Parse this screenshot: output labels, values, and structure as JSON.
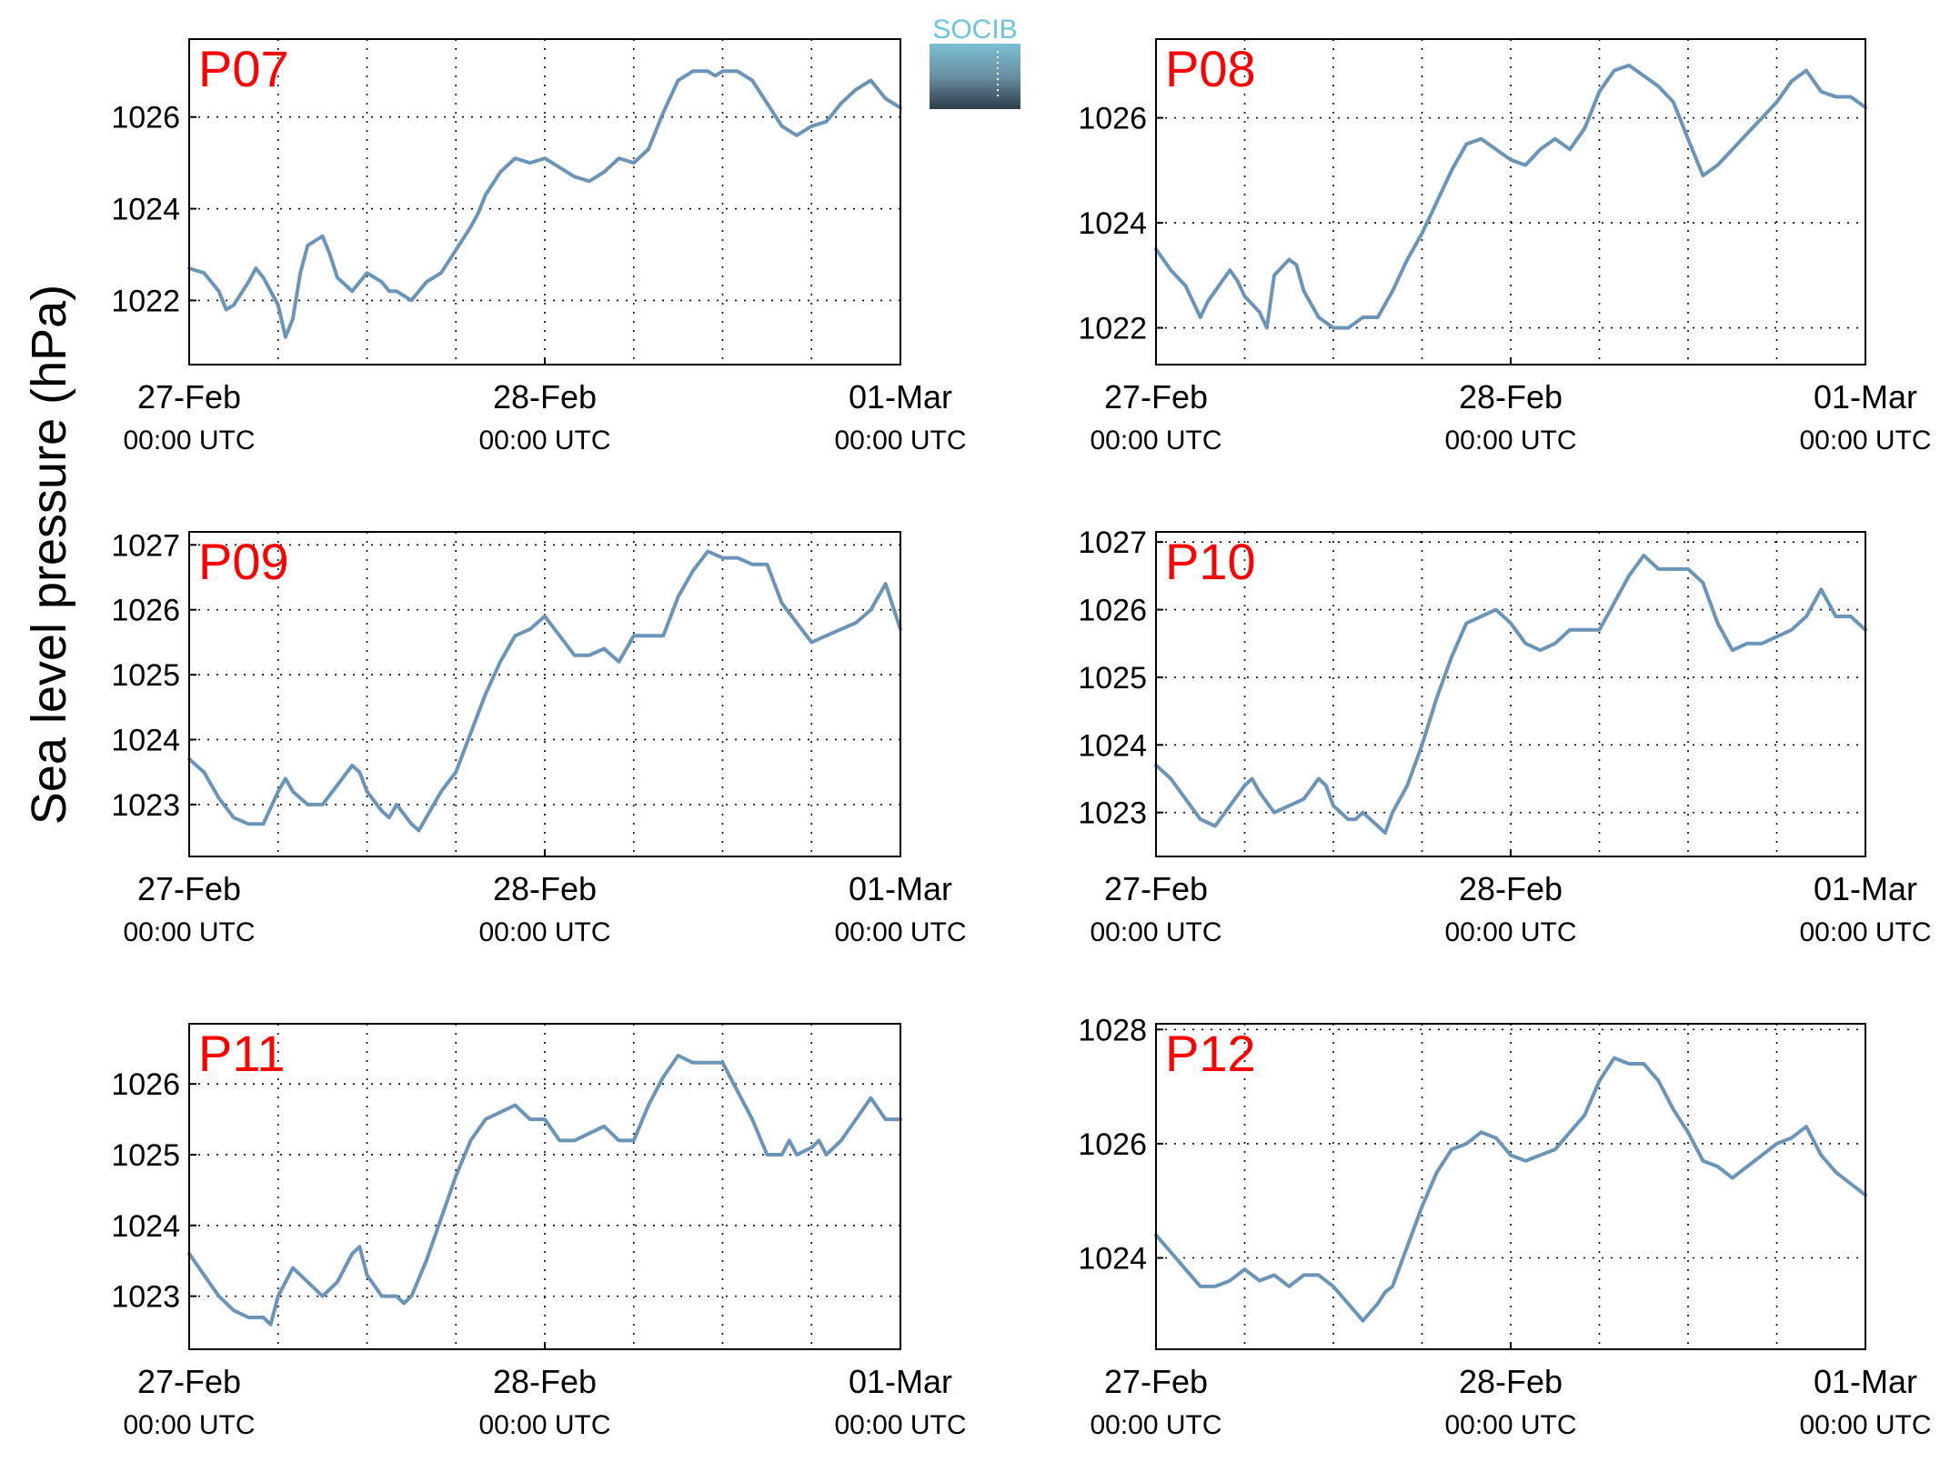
{
  "figure": {
    "ylabel": "Sea level pressure (hPa)",
    "logo_text": "SOCIB",
    "line_color": "#6a94b8",
    "station_label_color": "#ff0000"
  },
  "chart_data": [
    {
      "type": "line",
      "station": "P07",
      "x_tick_labels": [
        [
          "27-Feb",
          "00:00 UTC"
        ],
        [
          "28-Feb",
          "00:00 UTC"
        ],
        [
          "01-Mar",
          "00:00 UTC"
        ]
      ],
      "x_range_hours": [
        0,
        48
      ],
      "ylim": [
        1020.6,
        1027.7
      ],
      "yticks": [
        1022,
        1024,
        1026
      ],
      "grid": true,
      "x_hours": [
        0,
        1,
        2,
        2.5,
        3,
        4,
        4.5,
        5,
        6,
        6.5,
        7,
        7.5,
        8,
        9,
        9.5,
        10,
        11,
        12,
        13,
        13.5,
        14,
        15,
        16,
        17,
        18,
        19,
        19.5,
        20,
        21,
        22,
        23,
        24,
        25,
        26,
        27,
        28,
        29,
        30,
        31,
        32,
        33,
        34,
        35,
        35.5,
        36,
        37,
        38,
        39,
        40,
        41,
        42,
        43,
        44,
        45,
        46,
        47,
        48
      ],
      "y": [
        1022.7,
        1022.6,
        1022.2,
        1021.8,
        1021.9,
        1022.4,
        1022.7,
        1022.5,
        1021.9,
        1021.2,
        1021.6,
        1022.6,
        1023.2,
        1023.4,
        1023.0,
        1022.5,
        1022.2,
        1022.6,
        1022.4,
        1022.2,
        1022.2,
        1022.0,
        1022.4,
        1022.6,
        1023.1,
        1023.6,
        1023.9,
        1024.3,
        1024.8,
        1025.1,
        1025.0,
        1025.1,
        1024.9,
        1024.7,
        1024.6,
        1024.8,
        1025.1,
        1025.0,
        1025.3,
        1026.1,
        1026.8,
        1027.0,
        1027.0,
        1026.9,
        1027.0,
        1027.0,
        1026.8,
        1026.3,
        1025.8,
        1025.6,
        1025.8,
        1025.9,
        1026.3,
        1026.6,
        1026.8,
        1026.4,
        1026.2
      ]
    },
    {
      "type": "line",
      "station": "P08",
      "x_tick_labels": [
        [
          "27-Feb",
          "00:00 UTC"
        ],
        [
          "28-Feb",
          "00:00 UTC"
        ],
        [
          "01-Mar",
          "00:00 UTC"
        ]
      ],
      "x_range_hours": [
        0,
        48
      ],
      "ylim": [
        1021.3,
        1027.5
      ],
      "yticks": [
        1022,
        1024,
        1026
      ],
      "grid": true,
      "x_hours": [
        0,
        1,
        2,
        3,
        3.5,
        4,
        5,
        5.5,
        6,
        7,
        7.5,
        8,
        9,
        9.5,
        10,
        11,
        12,
        13,
        14,
        15,
        16,
        17,
        18,
        19,
        20,
        21,
        22,
        23,
        24,
        25,
        26,
        27,
        28,
        29,
        30,
        31,
        32,
        33,
        34,
        35,
        36,
        37,
        38,
        39,
        40,
        41,
        42,
        43,
        44,
        45,
        46,
        47,
        48
      ],
      "y": [
        1023.5,
        1023.1,
        1022.8,
        1022.2,
        1022.5,
        1022.7,
        1023.1,
        1022.9,
        1022.6,
        1022.3,
        1022.0,
        1023.0,
        1023.3,
        1023.2,
        1022.7,
        1022.2,
        1022.0,
        1022.0,
        1022.2,
        1022.2,
        1022.7,
        1023.3,
        1023.8,
        1024.4,
        1025.0,
        1025.5,
        1025.6,
        1025.4,
        1025.2,
        1025.1,
        1025.4,
        1025.6,
        1025.4,
        1025.8,
        1026.5,
        1026.9,
        1027.0,
        1026.8,
        1026.6,
        1026.3,
        1025.6,
        1024.9,
        1025.1,
        1025.4,
        1025.7,
        1026.0,
        1026.3,
        1026.7,
        1026.9,
        1026.5,
        1026.4,
        1026.4,
        1026.2
      ]
    },
    {
      "type": "line",
      "station": "P09",
      "x_tick_labels": [
        [
          "27-Feb",
          "00:00 UTC"
        ],
        [
          "28-Feb",
          "00:00 UTC"
        ],
        [
          "01-Mar",
          "00:00 UTC"
        ]
      ],
      "x_range_hours": [
        0,
        48
      ],
      "ylim": [
        1022.2,
        1027.2
      ],
      "yticks": [
        1023,
        1024,
        1025,
        1026,
        1027
      ],
      "grid": true,
      "x_hours": [
        0,
        1,
        2,
        3,
        4,
        5,
        6,
        6.5,
        7,
        8,
        9,
        10,
        11,
        11.5,
        12,
        13,
        13.5,
        14,
        15,
        15.5,
        16,
        17,
        18,
        19,
        20,
        21,
        22,
        23,
        24,
        25,
        26,
        27,
        28,
        29,
        30,
        31,
        32,
        33,
        34,
        35,
        36,
        37,
        38,
        39,
        40,
        41,
        42,
        43,
        44,
        45,
        46,
        47,
        48
      ],
      "y": [
        1023.7,
        1023.5,
        1023.1,
        1022.8,
        1022.7,
        1022.7,
        1023.2,
        1023.4,
        1023.2,
        1023.0,
        1023.0,
        1023.3,
        1023.6,
        1023.5,
        1023.2,
        1022.9,
        1022.8,
        1023.0,
        1022.7,
        1022.6,
        1022.8,
        1023.2,
        1023.5,
        1024.1,
        1024.7,
        1025.2,
        1025.6,
        1025.7,
        1025.9,
        1025.6,
        1025.3,
        1025.3,
        1025.4,
        1025.2,
        1025.6,
        1025.6,
        1025.6,
        1026.2,
        1026.6,
        1026.9,
        1026.8,
        1026.8,
        1026.7,
        1026.7,
        1026.1,
        1025.8,
        1025.5,
        1025.6,
        1025.7,
        1025.8,
        1026.0,
        1026.4,
        1025.7
      ]
    },
    {
      "type": "line",
      "station": "P10",
      "x_tick_labels": [
        [
          "27-Feb",
          "00:00 UTC"
        ],
        [
          "28-Feb",
          "00:00 UTC"
        ],
        [
          "01-Mar",
          "00:00 UTC"
        ]
      ],
      "x_range_hours": [
        0,
        48
      ],
      "ylim": [
        1022.35,
        1027.15
      ],
      "yticks": [
        1023,
        1024,
        1025,
        1026,
        1027
      ],
      "grid": true,
      "x_hours": [
        0,
        1,
        2,
        3,
        4,
        5,
        6,
        6.5,
        7,
        8,
        9,
        10,
        11,
        11.5,
        12,
        13,
        13.5,
        14,
        15,
        15.5,
        16,
        17,
        18,
        19,
        20,
        21,
        22,
        23,
        24,
        25,
        26,
        27,
        28,
        29,
        30,
        31,
        32,
        33,
        34,
        35,
        36,
        37,
        38,
        39,
        40,
        41,
        42,
        43,
        44,
        45,
        46,
        47,
        48
      ],
      "y": [
        1023.7,
        1023.5,
        1023.2,
        1022.9,
        1022.8,
        1023.1,
        1023.4,
        1023.5,
        1023.3,
        1023.0,
        1023.1,
        1023.2,
        1023.5,
        1023.4,
        1023.1,
        1022.9,
        1022.9,
        1023.0,
        1022.8,
        1022.7,
        1023.0,
        1023.4,
        1024.0,
        1024.7,
        1025.3,
        1025.8,
        1025.9,
        1026.0,
        1025.8,
        1025.5,
        1025.4,
        1025.5,
        1025.7,
        1025.7,
        1025.7,
        1026.1,
        1026.5,
        1026.8,
        1026.6,
        1026.6,
        1026.6,
        1026.4,
        1025.8,
        1025.4,
        1025.5,
        1025.5,
        1025.6,
        1025.7,
        1025.9,
        1026.3,
        1025.9,
        1025.9,
        1025.7
      ]
    },
    {
      "type": "line",
      "station": "P11",
      "x_tick_labels": [
        [
          "27-Feb",
          "00:00 UTC"
        ],
        [
          "28-Feb",
          "00:00 UTC"
        ],
        [
          "01-Mar",
          "00:00 UTC"
        ]
      ],
      "x_range_hours": [
        0,
        48
      ],
      "ylim": [
        1022.25,
        1026.85
      ],
      "yticks": [
        1023,
        1024,
        1025,
        1026
      ],
      "grid": true,
      "x_hours": [
        0,
        1,
        2,
        3,
        4,
        5,
        5.5,
        6,
        7,
        8,
        9,
        10,
        11,
        11.5,
        12,
        13,
        14,
        14.5,
        15,
        16,
        17,
        18,
        19,
        20,
        21,
        22,
        23,
        24,
        25,
        26,
        27,
        28,
        29,
        30,
        31,
        32,
        33,
        34,
        35,
        36,
        37,
        38,
        39,
        40,
        40.5,
        41,
        42,
        42.5,
        43,
        44,
        45,
        46,
        47,
        48
      ],
      "y": [
        1023.6,
        1023.3,
        1023.0,
        1022.8,
        1022.7,
        1022.7,
        1022.6,
        1023.0,
        1023.4,
        1023.2,
        1023.0,
        1023.2,
        1023.6,
        1023.7,
        1023.3,
        1023.0,
        1023.0,
        1022.9,
        1023.0,
        1023.5,
        1024.1,
        1024.7,
        1025.2,
        1025.5,
        1025.6,
        1025.7,
        1025.5,
        1025.5,
        1025.2,
        1025.2,
        1025.3,
        1025.4,
        1025.2,
        1025.2,
        1025.7,
        1026.1,
        1026.4,
        1026.3,
        1026.3,
        1026.3,
        1025.9,
        1025.5,
        1025.0,
        1025.0,
        1025.2,
        1025.0,
        1025.1,
        1025.2,
        1025.0,
        1025.2,
        1025.5,
        1025.8,
        1025.5,
        1025.5
      ]
    },
    {
      "type": "line",
      "station": "P12",
      "x_tick_labels": [
        [
          "27-Feb",
          "00:00 UTC"
        ],
        [
          "28-Feb",
          "00:00 UTC"
        ],
        [
          "01-Mar",
          "00:00 UTC"
        ]
      ],
      "x_range_hours": [
        0,
        48
      ],
      "ylim": [
        1022.4,
        1028.1
      ],
      "yticks": [
        1024,
        1026,
        1028
      ],
      "grid": true,
      "x_hours": [
        0,
        1,
        2,
        3,
        4,
        5,
        6,
        7,
        8,
        9,
        10,
        11,
        12,
        13,
        14,
        15,
        15.5,
        16,
        17,
        18,
        19,
        20,
        21,
        22,
        23,
        24,
        25,
        26,
        27,
        28,
        29,
        30,
        31,
        32,
        33,
        34,
        35,
        36,
        37,
        38,
        39,
        40,
        41,
        42,
        43,
        44,
        45,
        46,
        47,
        48
      ],
      "y": [
        1024.4,
        1024.1,
        1023.8,
        1023.5,
        1023.5,
        1023.6,
        1023.8,
        1023.6,
        1023.7,
        1023.5,
        1023.7,
        1023.7,
        1023.5,
        1023.2,
        1022.9,
        1023.2,
        1023.4,
        1023.5,
        1024.2,
        1024.9,
        1025.5,
        1025.9,
        1026.0,
        1026.2,
        1026.1,
        1025.8,
        1025.7,
        1025.8,
        1025.9,
        1026.2,
        1026.5,
        1027.1,
        1027.5,
        1027.4,
        1027.4,
        1027.1,
        1026.6,
        1026.2,
        1025.7,
        1025.6,
        1025.4,
        1025.6,
        1025.8,
        1026.0,
        1026.1,
        1026.3,
        1025.8,
        1025.5,
        1025.3,
        1025.1
      ]
    }
  ]
}
